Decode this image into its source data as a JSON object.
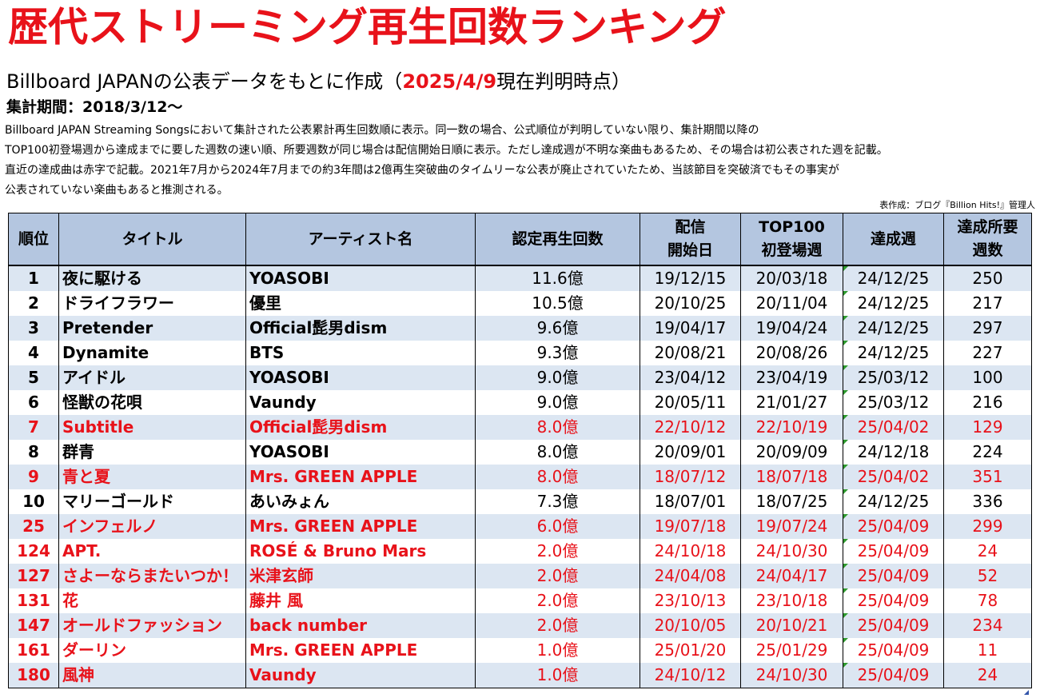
{
  "title": "歴代ストリーミング再生回数ランキング",
  "subtitle": {
    "prefix": "Billboard JAPANの公表データをもとに作成（",
    "date": "2025/4/9",
    "suffix": "現在判明時点）"
  },
  "period": "集計期間：2018/3/12～",
  "description": [
    "Billboard JAPAN Streaming Songsにおいて集計された公表累計再生回数順に表示。同一数の場合、公式順位が判明していない限り、集計期間以降の",
    "TOP100初登場週から達成までに要した週数の速い順、所要週数が同じ場合は配信開始日順に表示。ただし達成週が不明な楽曲もあるため、その場合は初公表された週を記載。",
    "直近の達成曲は赤字で記載。2021年7月から2024年7月までの約3年間は2億再生突破曲のタイムリーな公表が廃止されていたため、当該節目を突破済でもその事実が",
    "公表されていない楽曲もあると推測される。"
  ],
  "credit": "表作成：ブログ『Billion Hits!』管理人",
  "headers": {
    "rank": "順位",
    "title": "タイトル",
    "artist": "アーティスト名",
    "plays": "認定再生回数",
    "release_1": "配信",
    "release_2": "開始日",
    "debut_1": "TOP100",
    "debut_2": "初登場週",
    "achieved": "達成週",
    "weeks_1": "達成所要",
    "weeks_2": "週数"
  },
  "colors": {
    "accent_red": "#e8121a",
    "header_bg": "#b4c6e0",
    "stripe_bg": "#dce6f2"
  },
  "rows": [
    {
      "rank": "1",
      "title": "夜に駆ける",
      "artist": "YOASOBI",
      "plays": "11.6億",
      "release": "19/12/15",
      "debut": "20/03/18",
      "achieved": "24/12/25",
      "weeks": "250",
      "recent": false
    },
    {
      "rank": "2",
      "title": "ドライフラワー",
      "artist": "優里",
      "plays": "10.5億",
      "release": "20/10/25",
      "debut": "20/11/04",
      "achieved": "24/12/25",
      "weeks": "217",
      "recent": false
    },
    {
      "rank": "3",
      "title": "Pretender",
      "artist": "Official髭男dism",
      "plays": "9.6億",
      "release": "19/04/17",
      "debut": "19/04/24",
      "achieved": "24/12/25",
      "weeks": "297",
      "recent": false
    },
    {
      "rank": "4",
      "title": "Dynamite",
      "artist": "BTS",
      "plays": "9.3億",
      "release": "20/08/21",
      "debut": "20/08/26",
      "achieved": "24/12/25",
      "weeks": "227",
      "recent": false
    },
    {
      "rank": "5",
      "title": "アイドル",
      "artist": "YOASOBI",
      "plays": "9.0億",
      "release": "23/04/12",
      "debut": "23/04/19",
      "achieved": "25/03/12",
      "weeks": "100",
      "recent": false
    },
    {
      "rank": "6",
      "title": "怪獣の花唄",
      "artist": "Vaundy",
      "plays": "9.0億",
      "release": "20/05/11",
      "debut": "21/01/27",
      "achieved": "25/03/12",
      "weeks": "216",
      "recent": false
    },
    {
      "rank": "7",
      "title": "Subtitle",
      "artist": "Official髭男dism",
      "plays": "8.0億",
      "release": "22/10/12",
      "debut": "22/10/19",
      "achieved": "25/04/02",
      "weeks": "129",
      "recent": true
    },
    {
      "rank": "8",
      "title": "群青",
      "artist": "YOASOBI",
      "plays": "8.0億",
      "release": "20/09/01",
      "debut": "20/09/09",
      "achieved": "24/12/18",
      "weeks": "224",
      "recent": false
    },
    {
      "rank": "9",
      "title": "青と夏",
      "artist": "Mrs. GREEN APPLE",
      "plays": "8.0億",
      "release": "18/07/12",
      "debut": "18/07/18",
      "achieved": "25/04/02",
      "weeks": "351",
      "recent": true
    },
    {
      "rank": "10",
      "title": "マリーゴールド",
      "artist": "あいみょん",
      "plays": "7.3億",
      "release": "18/07/01",
      "debut": "18/07/25",
      "achieved": "24/12/25",
      "weeks": "336",
      "recent": false
    },
    {
      "rank": "25",
      "title": "インフェルノ",
      "artist": "Mrs. GREEN APPLE",
      "plays": "6.0億",
      "release": "19/07/18",
      "debut": "19/07/24",
      "achieved": "25/04/09",
      "weeks": "299",
      "recent": true
    },
    {
      "rank": "124",
      "title": "APT.",
      "artist": "ROSÉ & Bruno Mars",
      "plays": "2.0億",
      "release": "24/10/18",
      "debut": "24/10/30",
      "achieved": "25/04/09",
      "weeks": "24",
      "recent": true
    },
    {
      "rank": "127",
      "title": "さよーならまたいつか！",
      "artist": "米津玄師",
      "plays": "2.0億",
      "release": "24/04/08",
      "debut": "24/04/17",
      "achieved": "25/04/09",
      "weeks": "52",
      "recent": true
    },
    {
      "rank": "131",
      "title": "花",
      "artist": "藤井 風",
      "plays": "2.0億",
      "release": "23/10/13",
      "debut": "23/10/18",
      "achieved": "25/04/09",
      "weeks": "78",
      "recent": true
    },
    {
      "rank": "147",
      "title": "オールドファッション",
      "artist": "back number",
      "plays": "2.0億",
      "release": "20/10/05",
      "debut": "20/10/21",
      "achieved": "25/04/09",
      "weeks": "234",
      "recent": true
    },
    {
      "rank": "161",
      "title": "ダーリン",
      "artist": "Mrs. GREEN APPLE",
      "plays": "1.0億",
      "release": "25/01/20",
      "debut": "25/01/29",
      "achieved": "25/04/09",
      "weeks": "11",
      "recent": true
    },
    {
      "rank": "180",
      "title": "風神",
      "artist": "Vaundy",
      "plays": "1.0億",
      "release": "24/10/12",
      "debut": "24/10/30",
      "achieved": "25/04/09",
      "weeks": "24",
      "recent": true
    }
  ]
}
